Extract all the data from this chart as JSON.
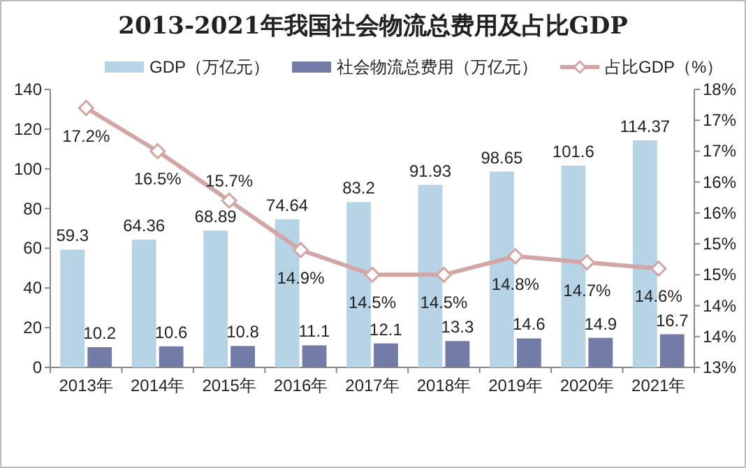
{
  "chart_data": {
    "type": "bar",
    "title": "2013-2021年我国社会物流总费用及占比GDP",
    "categories": [
      "2013年",
      "2014年",
      "2015年",
      "2016年",
      "2017年",
      "2018年",
      "2019年",
      "2020年",
      "2021年"
    ],
    "series": [
      {
        "name": "GDP（万亿元）",
        "color": "#b7d3e6",
        "values": [
          59.3,
          64.36,
          68.89,
          74.64,
          83.2,
          91.93,
          98.65,
          101.6,
          114.37
        ]
      },
      {
        "name": "社会物流总费用（万亿元）",
        "color": "#737ca6",
        "values": [
          10.2,
          10.6,
          10.8,
          11.1,
          12.1,
          13.3,
          14.6,
          14.9,
          16.7
        ]
      },
      {
        "name": "占比GDP（%）",
        "type": "line",
        "axis": "y2",
        "color": "#d4a5a5",
        "marker": "diamond",
        "values": [
          17.2,
          16.5,
          15.7,
          14.9,
          14.5,
          14.5,
          14.8,
          14.7,
          14.6
        ],
        "value_labels": [
          "17.2%",
          "16.5%",
          "15.7%",
          "14.9%",
          "14.5%",
          "14.5%",
          "14.8%",
          "14.7%",
          "14.6%"
        ]
      }
    ],
    "ylim": [
      0,
      140
    ],
    "yticks": [
      0,
      20,
      40,
      60,
      80,
      100,
      120,
      140
    ],
    "y2lim": [
      13,
      17.5
    ],
    "y2ticks": [
      {
        "value": 13,
        "label": "13%"
      },
      {
        "value": 13.5,
        "label": "14%"
      },
      {
        "value": 14,
        "label": "14%"
      },
      {
        "value": 14.5,
        "label": "15%"
      },
      {
        "value": 15,
        "label": "15%"
      },
      {
        "value": 15.5,
        "label": "16%"
      },
      {
        "value": 16,
        "label": "16%"
      },
      {
        "value": 16.5,
        "label": "17%"
      },
      {
        "value": 17,
        "label": "17%"
      },
      {
        "value": 17.5,
        "label": "18%"
      }
    ],
    "data_labels": true,
    "legend": "top"
  }
}
